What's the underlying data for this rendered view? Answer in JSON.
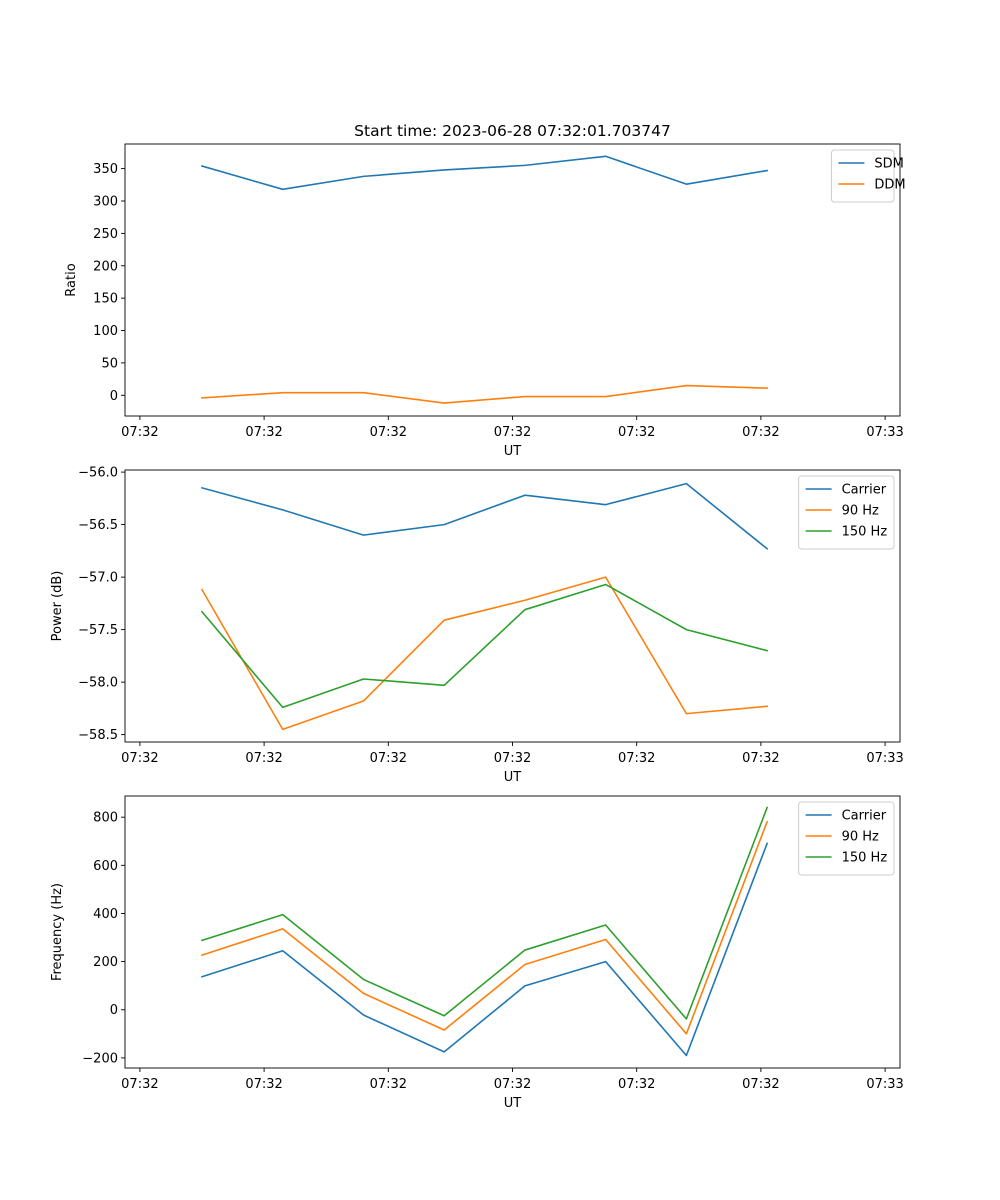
{
  "title": "Start time: 2023-06-28 07:32:01.703747",
  "chart_data": [
    {
      "type": "line",
      "ylabel": "Ratio",
      "xlabel": "UT",
      "xticks": [
        "07:32",
        "07:32",
        "07:32",
        "07:32",
        "07:32",
        "07:32",
        "07:33"
      ],
      "ylim": [
        -32,
        388
      ],
      "yticks": [
        0,
        50,
        100,
        150,
        200,
        250,
        300,
        350
      ],
      "legend": "top-right",
      "x": [
        0.5,
        1.15,
        1.8,
        2.45,
        3.1,
        3.75,
        4.4,
        5.05
      ],
      "series": [
        {
          "name": "SDM",
          "color": "#1f77b4",
          "values": [
            354,
            318,
            338,
            348,
            355,
            369,
            326,
            347
          ]
        },
        {
          "name": "DDM",
          "color": "#ff7f0e",
          "values": [
            -4,
            4,
            4,
            -12,
            -2,
            -2,
            15,
            11
          ]
        }
      ]
    },
    {
      "type": "line",
      "ylabel": "Power (dB)",
      "xlabel": "UT",
      "xticks": [
        "07:32",
        "07:32",
        "07:32",
        "07:32",
        "07:32",
        "07:32",
        "07:33"
      ],
      "ylim": [
        -58.57,
        -55.98
      ],
      "yticks": [
        -56.0,
        -56.5,
        -57.0,
        -57.5,
        -58.0,
        -58.5
      ],
      "legend": "top-right",
      "x": [
        0.5,
        1.15,
        1.8,
        2.45,
        3.1,
        3.75,
        4.4,
        5.05
      ],
      "series": [
        {
          "name": "Carrier",
          "color": "#1f77b4",
          "values": [
            -56.15,
            -56.36,
            -56.6,
            -56.5,
            -56.22,
            -56.31,
            -56.11,
            -56.73
          ]
        },
        {
          "name": "90 Hz",
          "color": "#ff7f0e",
          "values": [
            -57.12,
            -58.45,
            -58.18,
            -57.41,
            -57.22,
            -57.0,
            -58.3,
            -58.23
          ]
        },
        {
          "name": "150 Hz",
          "color": "#2ca02c",
          "values": [
            -57.33,
            -58.24,
            -57.97,
            -58.03,
            -57.31,
            -57.07,
            -57.5,
            -57.7
          ]
        }
      ]
    },
    {
      "type": "line",
      "ylabel": "Frequency (Hz)",
      "xlabel": "UT",
      "xticks": [
        "07:32",
        "07:32",
        "07:32",
        "07:32",
        "07:32",
        "07:32",
        "07:33"
      ],
      "ylim": [
        -242,
        888
      ],
      "yticks": [
        -200,
        0,
        200,
        400,
        600,
        800
      ],
      "legend": "top-right",
      "x": [
        0.5,
        1.15,
        1.8,
        2.45,
        3.1,
        3.75,
        4.4,
        5.05
      ],
      "series": [
        {
          "name": "Carrier",
          "color": "#1f77b4",
          "values": [
            137,
            245,
            -22,
            -175,
            99,
            200,
            -190,
            691
          ]
        },
        {
          "name": "90 Hz",
          "color": "#ff7f0e",
          "values": [
            227,
            336,
            68,
            -84,
            188,
            292,
            -100,
            781
          ]
        },
        {
          "name": "150 Hz",
          "color": "#2ca02c",
          "values": [
            288,
            395,
            126,
            -25,
            248,
            352,
            -38,
            840
          ]
        }
      ]
    }
  ]
}
